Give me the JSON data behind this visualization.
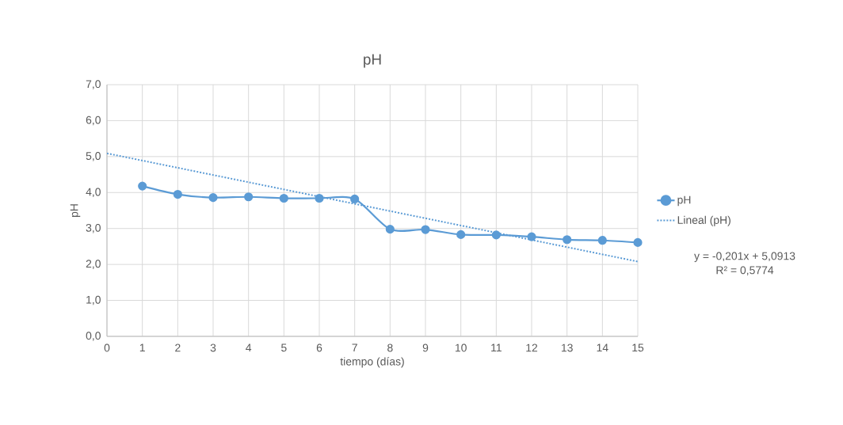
{
  "chart_data": {
    "type": "line",
    "title": "pH",
    "xlabel": "tiempo (días)",
    "ylabel": "pH",
    "x": [
      1,
      2,
      3,
      4,
      5,
      6,
      7,
      8,
      9,
      10,
      11,
      12,
      13,
      14,
      15
    ],
    "series": [
      {
        "name": "pH",
        "color": "#5b9bd5",
        "values": [
          4.18,
          3.95,
          3.86,
          3.88,
          3.84,
          3.84,
          3.82,
          2.98,
          2.97,
          2.83,
          2.82,
          2.77,
          2.69,
          2.67,
          2.61
        ],
        "marker": "circle",
        "line_style": "solid"
      },
      {
        "name": "Lineal (pH)",
        "color": "#5b9bd5",
        "x": [
          0,
          15
        ],
        "values": [
          5.09,
          2.08
        ],
        "marker": "none",
        "line_style": "dotted"
      }
    ],
    "xlim": [
      0,
      15
    ],
    "ylim": [
      0,
      7
    ],
    "xticks": [
      0,
      1,
      2,
      3,
      4,
      5,
      6,
      7,
      8,
      9,
      10,
      11,
      12,
      13,
      14,
      15
    ],
    "yticks": [
      {
        "value": 0,
        "label": "0,0"
      },
      {
        "value": 1,
        "label": "1,0"
      },
      {
        "value": 2,
        "label": "2,0"
      },
      {
        "value": 3,
        "label": "3,0"
      },
      {
        "value": 4,
        "label": "4,0"
      },
      {
        "value": 5,
        "label": "5,0"
      },
      {
        "value": 6,
        "label": "6,0"
      },
      {
        "value": 7,
        "label": "7,0"
      }
    ],
    "grid": true,
    "legend": "right",
    "annotations": [
      "y = -0,201x + 5,0913",
      "R² = 0,5774"
    ]
  }
}
